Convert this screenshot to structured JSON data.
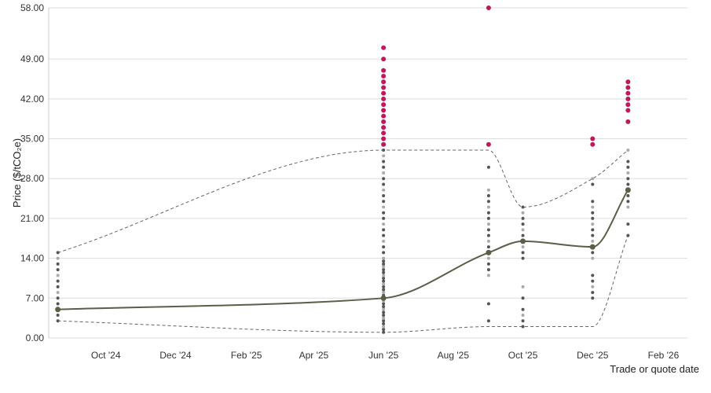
{
  "chart_data": {
    "type": "scatter",
    "ylabel": "Price ($/tCO₂e)",
    "xlabel": "Trade or quote date",
    "ylim": [
      0,
      58
    ],
    "xlim": [
      "2024-08-12",
      "2026-02-22"
    ],
    "y_ticks": [
      "0.00",
      "7.00",
      "14.00",
      "21.00",
      "28.00",
      "35.00",
      "42.00",
      "49.00",
      "58.00"
    ],
    "x_ticks": [
      {
        "date": "2024-10-01",
        "label": "Oct '24"
      },
      {
        "date": "2024-12-01",
        "label": "Dec '24"
      },
      {
        "date": "2025-02-01",
        "label": "Feb '25"
      },
      {
        "date": "2025-04-01",
        "label": "Apr '25"
      },
      {
        "date": "2025-06-01",
        "label": "Jun '25"
      },
      {
        "date": "2025-08-01",
        "label": "Aug '25"
      },
      {
        "date": "2025-10-01",
        "label": "Oct '25"
      },
      {
        "date": "2025-12-01",
        "label": "Dec '25"
      },
      {
        "date": "2026-02-01",
        "label": "Feb '26"
      }
    ],
    "grid": true,
    "colors": {
      "points": "#555555",
      "points_light": "#aaaaaa",
      "outliers": "#c2185b",
      "median": "#5a5f48",
      "bounds": "#666666",
      "grid": "#dddddd"
    },
    "series": [
      {
        "points": [
          {
            "x": "2024-08-20",
            "y": [
              3,
              4,
              5,
              6,
              7,
              8,
              9,
              10,
              11,
              12,
              13,
              14,
              15
            ]
          },
          {
            "x": "2025-06-01",
            "y": [
              1,
              1.5,
              2,
              2.5,
              3,
              3.5,
              4,
              4.5,
              5,
              5.5,
              6,
              6.5,
              7,
              7.5,
              8,
              8.5,
              9,
              9.5,
              10,
              10.5,
              11,
              11.5,
              12,
              12.5,
              13,
              13.5,
              14,
              15,
              16,
              17,
              18,
              19,
              20,
              21,
              22,
              23,
              24,
              25,
              26,
              27,
              28,
              29,
              30,
              31,
              32,
              33
            ]
          },
          {
            "x": "2025-09-01",
            "y": [
              3,
              6,
              11,
              12,
              13,
              14,
              15,
              16,
              17,
              18,
              19,
              20,
              21,
              22,
              23,
              24,
              25,
              26,
              30
            ]
          },
          {
            "x": "2025-10-01",
            "y": [
              2,
              3,
              4,
              5,
              7,
              9,
              14,
              15,
              16,
              17,
              18,
              19,
              20,
              21,
              22,
              23
            ]
          },
          {
            "x": "2025-12-01",
            "y": [
              7,
              8,
              9,
              10,
              11,
              14,
              15,
              16,
              17,
              18,
              19,
              20,
              21,
              22,
              23,
              24,
              27,
              28
            ]
          },
          {
            "x": "2026-01-01",
            "y": [
              18,
              20,
              23,
              24,
              25,
              26,
              27,
              28,
              29,
              30,
              31,
              33
            ]
          }
        ]
      },
      {
        "points": [
          {
            "x": "2025-06-01",
            "y": [
              34,
              35,
              36,
              37,
              38,
              39,
              40,
              41,
              42,
              43,
              44,
              45,
              46,
              47,
              49,
              51
            ]
          },
          {
            "x": "2025-09-01",
            "y": [
              34,
              58
            ]
          },
          {
            "x": "2025-12-01",
            "y": [
              34,
              35
            ]
          },
          {
            "x": "2026-01-01",
            "y": [
              38,
              40,
              41,
              42,
              43,
              44,
              45
            ]
          }
        ]
      },
      {
        "points": [
          {
            "x": "2024-08-20",
            "y": 5
          },
          {
            "x": "2025-06-01",
            "y": 7
          },
          {
            "x": "2025-09-01",
            "y": 15
          },
          {
            "x": "2025-10-01",
            "y": 17
          },
          {
            "x": "2025-12-01",
            "y": 16
          },
          {
            "x": "2026-01-01",
            "y": 26
          }
        ]
      },
      {
        "points": [
          {
            "x": "2024-08-20",
            "y": 15
          },
          {
            "x": "2025-06-01",
            "y": 33
          },
          {
            "x": "2025-09-01",
            "y": 33
          },
          {
            "x": "2025-10-01",
            "y": 23
          },
          {
            "x": "2025-12-01",
            "y": 28
          },
          {
            "x": "2026-01-01",
            "y": 33
          }
        ]
      },
      {
        "points": [
          {
            "x": "2024-08-20",
            "y": 3
          },
          {
            "x": "2025-06-01",
            "y": 1
          },
          {
            "x": "2025-09-01",
            "y": 2
          },
          {
            "x": "2025-10-01",
            "y": 2
          },
          {
            "x": "2025-12-01",
            "y": 2
          },
          {
            "x": "2026-01-01",
            "y": 18
          }
        ]
      }
    ]
  }
}
